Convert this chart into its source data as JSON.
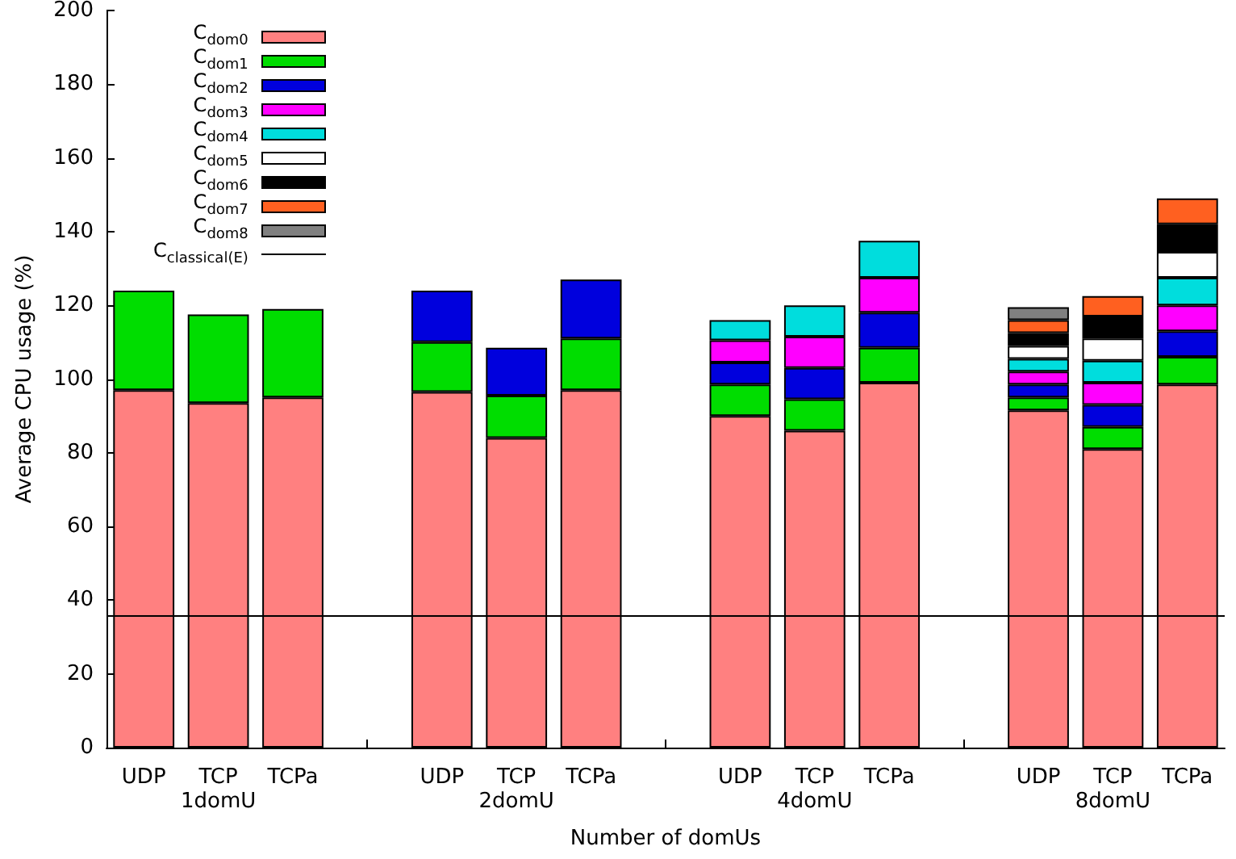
{
  "chart_data": {
    "type": "bar",
    "stacked": true,
    "xlabel": "Number of domUs",
    "ylabel": "Average CPU usage (%)",
    "categories": [
      "UDP",
      "TCP",
      "TCPa",
      null,
      "UDP",
      "TCP",
      "TCPa",
      null,
      "UDP",
      "TCP",
      "TCPa",
      null,
      "UDP",
      "TCP",
      "TCPa"
    ],
    "annotations": [
      "1domU",
      "2domU",
      "4domU",
      "8domU"
    ],
    "ylim": [
      0,
      200
    ],
    "yticks": [
      0,
      20,
      40,
      60,
      80,
      100,
      120,
      140,
      160,
      180,
      200
    ],
    "grid": false,
    "legend": "top left",
    "ref_lines": [
      {
        "axis": "y",
        "value": 36,
        "label": "C$_{classical(E)}$",
        "color": "#000000"
      }
    ],
    "series": [
      {
        "name": "C$_{dom0}$",
        "color": "#ff8080",
        "values": [
          97,
          93.5,
          95,
          null,
          96.5,
          84,
          97,
          null,
          90,
          86,
          99,
          null,
          91.5,
          81,
          98.5
        ]
      },
      {
        "name": "C$_{dom1}$",
        "color": "#00dd00",
        "values": [
          27,
          24,
          24,
          null,
          13.5,
          11.5,
          14,
          null,
          8.5,
          8.5,
          9.5,
          null,
          3.5,
          6,
          7.5
        ]
      },
      {
        "name": "C$_{dom2}$",
        "color": "#0000dd",
        "values": [
          null,
          null,
          null,
          null,
          14,
          13,
          16,
          null,
          6,
          8.5,
          9.5,
          null,
          3.5,
          6,
          7
        ]
      },
      {
        "name": "C$_{dom3}$",
        "color": "#ff00ff",
        "values": [
          null,
          null,
          null,
          null,
          null,
          null,
          null,
          null,
          6,
          8.5,
          9.5,
          null,
          3.5,
          6,
          7
        ]
      },
      {
        "name": "C$_{dom4}$",
        "color": "#00dddd",
        "values": [
          null,
          null,
          null,
          null,
          null,
          null,
          null,
          null,
          5.5,
          8.5,
          10,
          null,
          3.5,
          6,
          7.5
        ]
      },
      {
        "name": "C$_{dom5}$",
        "color": "#ffffff",
        "values": [
          null,
          null,
          null,
          null,
          null,
          null,
          null,
          null,
          null,
          null,
          null,
          null,
          3.5,
          6,
          7
        ]
      },
      {
        "name": "C$_{dom6}$",
        "color": "#000000",
        "values": [
          null,
          null,
          null,
          null,
          null,
          null,
          null,
          null,
          null,
          null,
          null,
          null,
          3.5,
          6,
          7.5
        ]
      },
      {
        "name": "C$_{dom7}$",
        "color": "#ff6020",
        "values": [
          null,
          null,
          null,
          null,
          null,
          null,
          null,
          null,
          null,
          null,
          null,
          null,
          3.5,
          5.5,
          7
        ]
      },
      {
        "name": "C$_{dom8}$",
        "color": "#808080",
        "values": [
          null,
          null,
          null,
          null,
          null,
          null,
          null,
          null,
          null,
          null,
          null,
          null,
          3.5,
          null,
          null
        ]
      }
    ]
  }
}
